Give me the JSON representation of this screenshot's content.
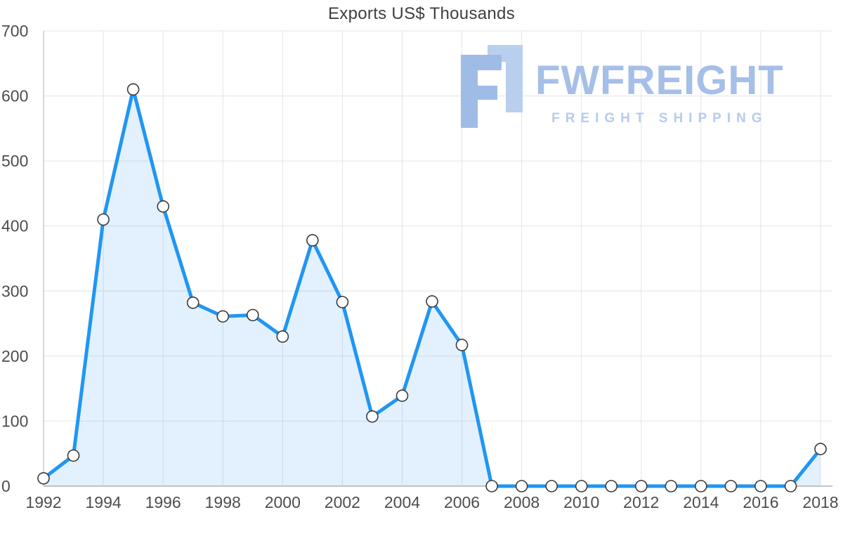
{
  "watermark": {
    "name": "FWFREIGHT",
    "tagline": "FREIGHT SHIPPING",
    "color_primary": "#a5bfe8",
    "color_secondary": "#b7cbee",
    "icon": "fw-logo-icon"
  },
  "chart_data": {
    "type": "line",
    "title": "Exports US$ Thousands",
    "xlabel": "",
    "ylabel": "",
    "x": [
      1992,
      1993,
      1994,
      1995,
      1996,
      1997,
      1998,
      1999,
      2000,
      2001,
      2002,
      2003,
      2004,
      2005,
      2006,
      2007,
      2008,
      2009,
      2010,
      2011,
      2012,
      2013,
      2014,
      2015,
      2016,
      2017,
      2018
    ],
    "series": [
      {
        "name": "Exports US$ Thousands",
        "values": [
          12,
          47,
          410,
          610,
          430,
          282,
          261,
          263,
          230,
          378,
          283,
          107,
          139,
          284,
          217,
          0,
          0,
          0,
          0,
          0,
          0,
          0,
          0,
          0,
          0,
          0,
          57
        ]
      }
    ],
    "ylim": [
      0,
      700
    ],
    "yticks": [
      0,
      100,
      200,
      300,
      400,
      500,
      600,
      700
    ],
    "x_tick_step": 2,
    "grid": true,
    "legend": "none",
    "marker": "circle-white-dark-outline",
    "area_fill": true,
    "colors": {
      "line": "#2196f3",
      "fill": "rgba(33,150,243,0.13)",
      "grid": "#e4e4e4",
      "axis": "#b3b3b3",
      "tick_text": "#4d4d4d",
      "title_text": "#3f3f3f",
      "marker_fill": "#ffffff",
      "marker_stroke": "#3a3a3a"
    }
  }
}
